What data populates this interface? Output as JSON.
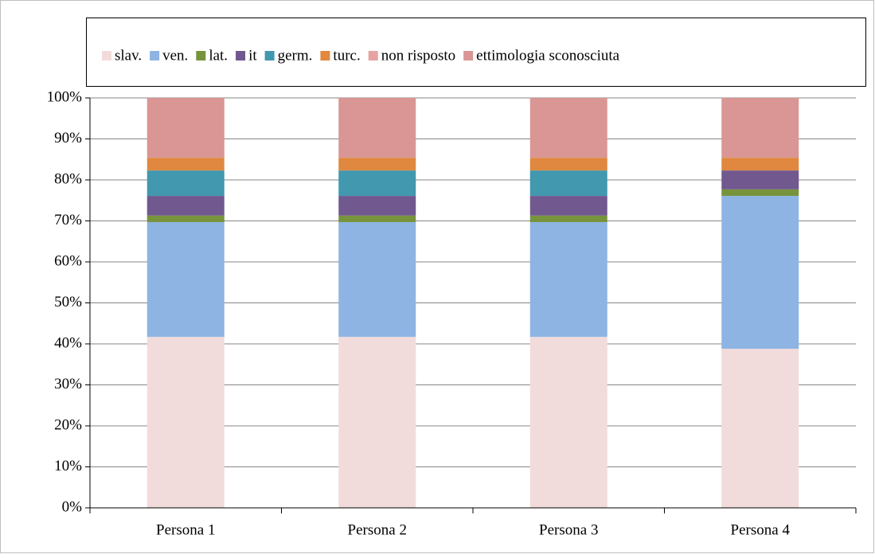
{
  "chart_data": {
    "type": "stacked_bar",
    "categories": [
      "Persona 1",
      "Persona 2",
      "Persona 3",
      "Persona 4"
    ],
    "series": [
      {
        "name": "slav.",
        "color": "#f2dcdb",
        "values": [
          41.7,
          41.7,
          41.7,
          38.8
        ]
      },
      {
        "name": "ven.",
        "color": "#8eb4e3",
        "values": [
          28.0,
          28.0,
          28.0,
          37.3
        ]
      },
      {
        "name": "lat.",
        "color": "#77933c",
        "values": [
          1.6,
          1.6,
          1.6,
          1.6
        ]
      },
      {
        "name": "it",
        "color": "#71588f",
        "values": [
          4.8,
          4.8,
          4.8,
          4.6
        ]
      },
      {
        "name": "germ.",
        "color": "#4198af",
        "values": [
          6.2,
          6.2,
          6.2,
          0
        ]
      },
      {
        "name": "turc.",
        "color": "#e0883f",
        "values": [
          3.1,
          3.1,
          3.1,
          3.1
        ]
      },
      {
        "name": "non risposto",
        "color": "#e6a3a1",
        "values": [
          0,
          0,
          0,
          0
        ]
      },
      {
        "name": "ettimologia sconosciuta",
        "color": "#d99694",
        "values": [
          14.6,
          14.6,
          14.6,
          14.6
        ]
      }
    ],
    "ylim": [
      0,
      100
    ],
    "yticks": [
      {
        "value": 0,
        "label": "0%"
      },
      {
        "value": 10,
        "label": "10%"
      },
      {
        "value": 20,
        "label": "20%"
      },
      {
        "value": 30,
        "label": "30%"
      },
      {
        "value": 40,
        "label": "40%"
      },
      {
        "value": 50,
        "label": "50%"
      },
      {
        "value": 60,
        "label": "60%"
      },
      {
        "value": 70,
        "label": "70%"
      },
      {
        "value": 80,
        "label": "80%"
      },
      {
        "value": 90,
        "label": "90%"
      },
      {
        "value": 100,
        "label": "100%"
      }
    ],
    "grid": true,
    "legend": "top"
  }
}
